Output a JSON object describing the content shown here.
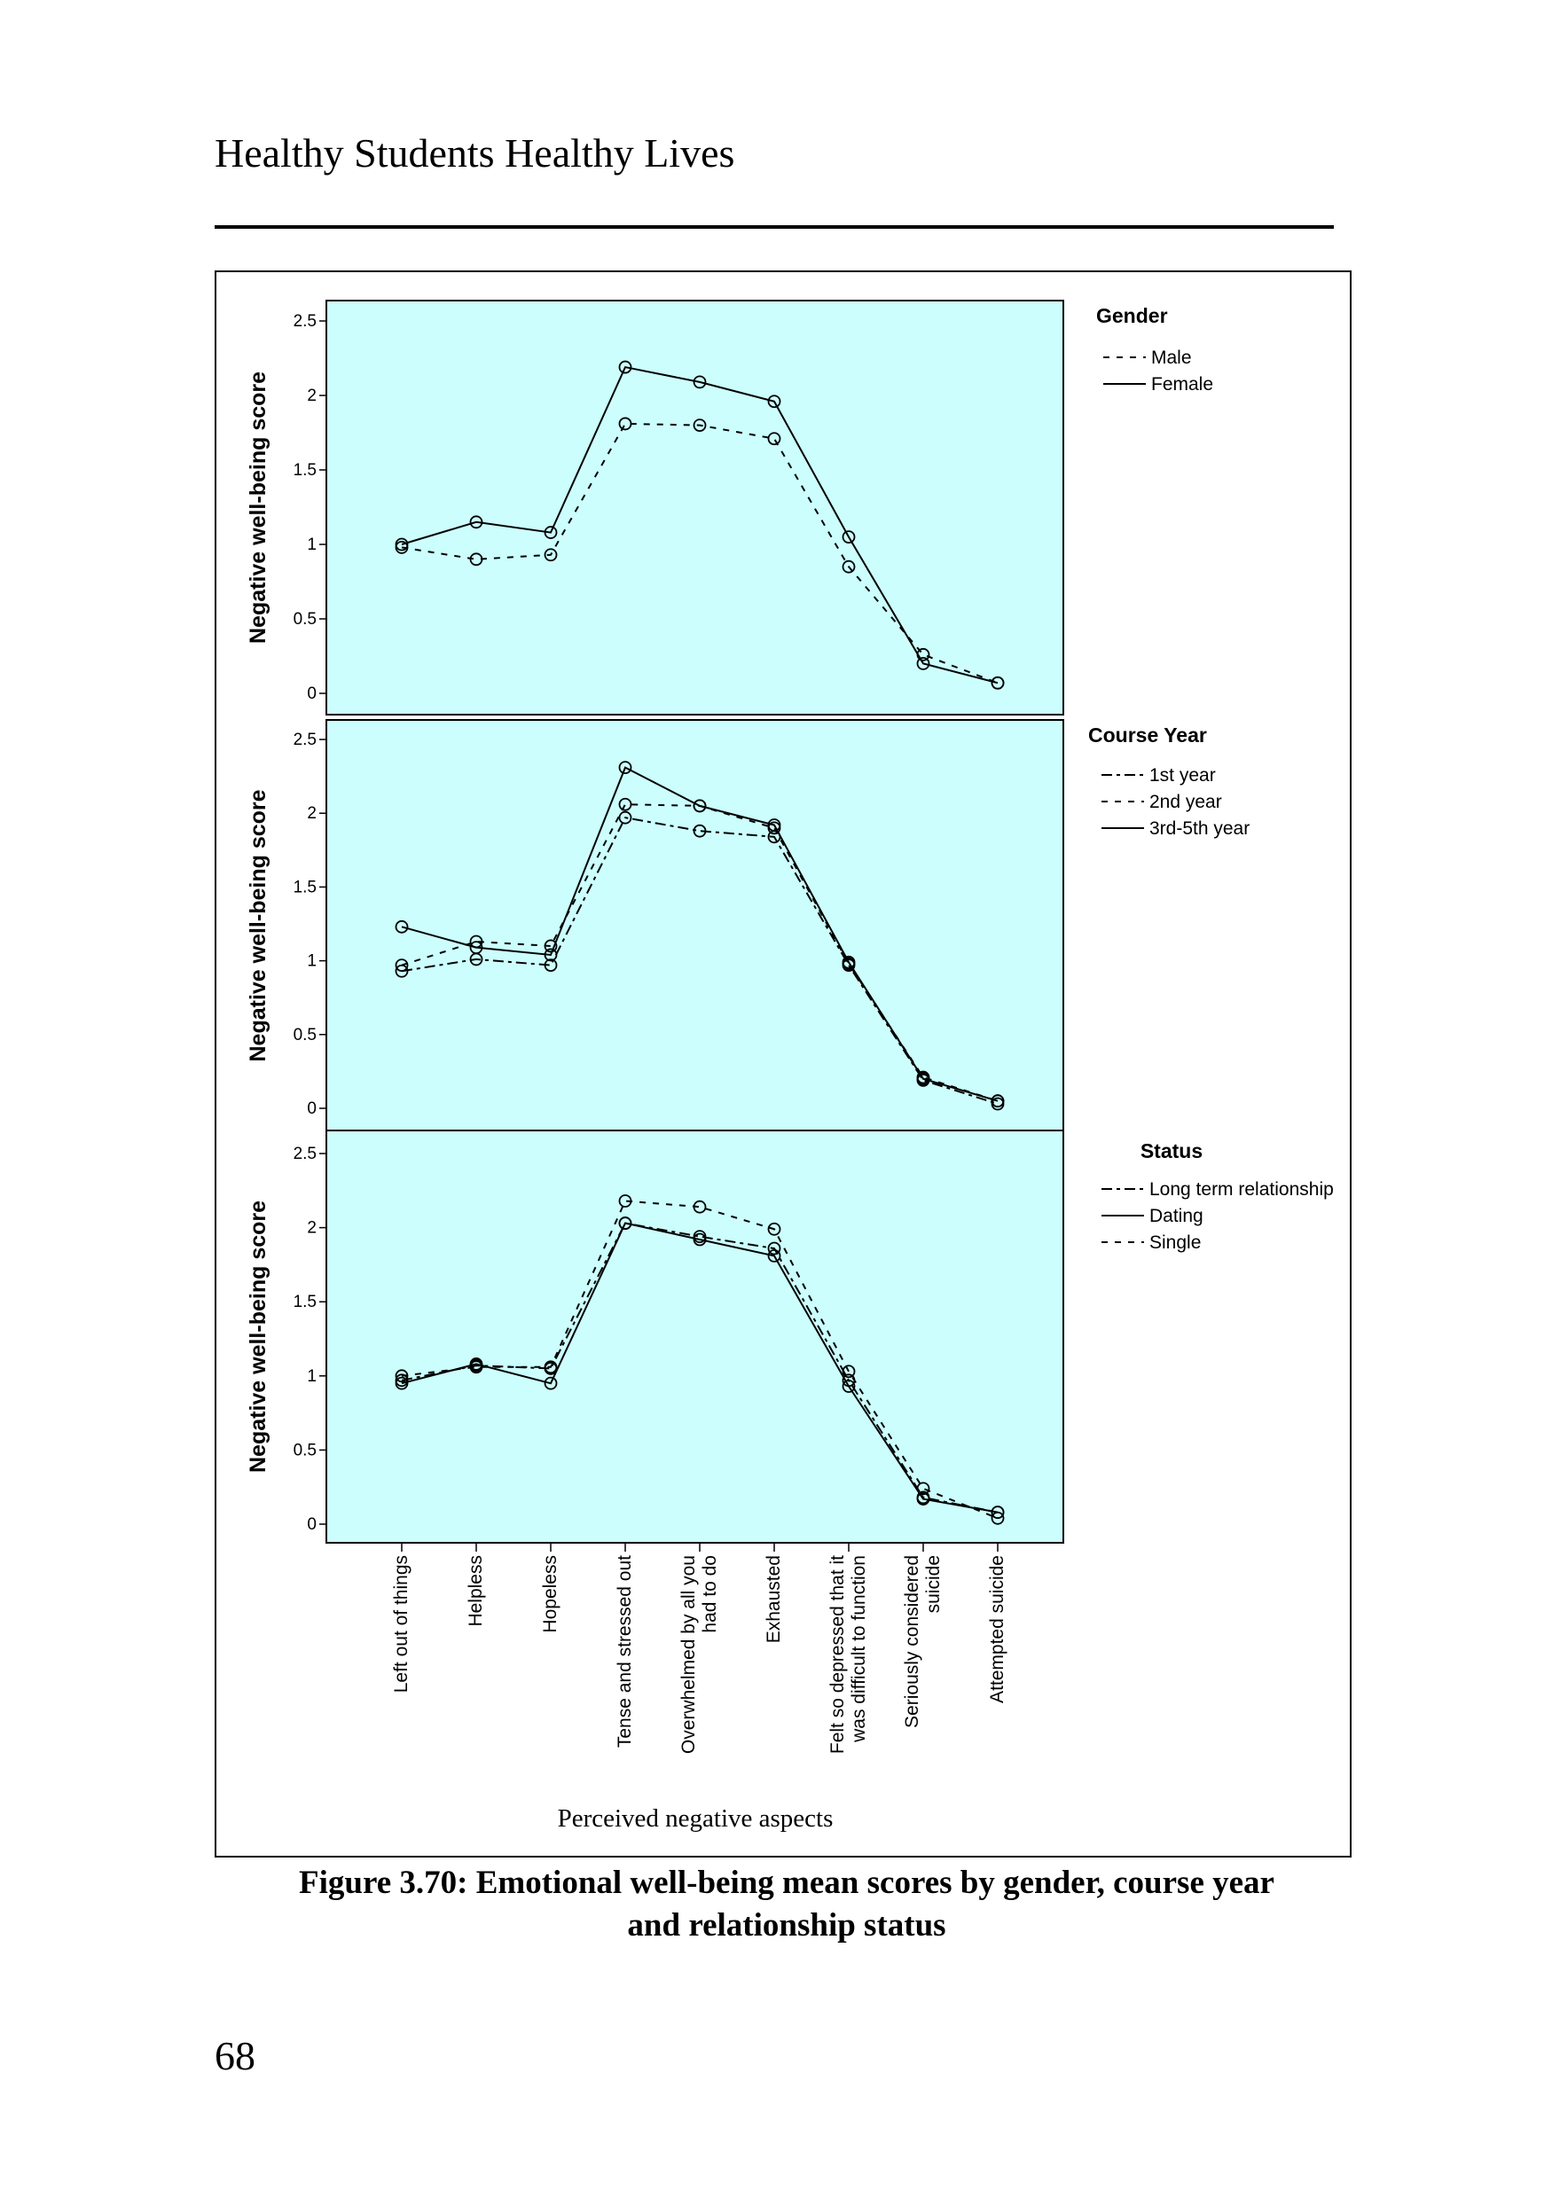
{
  "page": {
    "running_header": "Healthy Students Healthy Lives",
    "page_number": "68"
  },
  "figure": {
    "caption_line1": "Figure 3.70: Emotional well-being mean scores by gender, course year",
    "caption_line2": "and relationship status",
    "panel_background": "#ccfefe"
  },
  "chart_data": [
    {
      "type": "line",
      "legend_title": "Gender",
      "legend_position": "right",
      "ylabel": "Negative well-being score",
      "ylim": [
        0,
        2.5
      ],
      "yticks": [
        "0",
        "0.5",
        "1",
        "1.5",
        "2",
        "2.5"
      ],
      "categories": [
        "Left out of things",
        "Helpless",
        "Hopeless",
        "Tense and stressed out",
        "Overwhelmed by all you had to do",
        "Exhausted",
        "Felt so depressed that it was difficult to function",
        "Seriously considered suicide",
        "Attempted suicide"
      ],
      "series": [
        {
          "name": "Male",
          "style": "dashed",
          "values": [
            0.98,
            0.9,
            0.93,
            1.81,
            1.8,
            1.71,
            0.85,
            0.26,
            0.07
          ]
        },
        {
          "name": "Female",
          "style": "solid",
          "values": [
            1.0,
            1.15,
            1.08,
            2.19,
            2.09,
            1.96,
            1.05,
            0.2,
            0.07
          ]
        }
      ]
    },
    {
      "type": "line",
      "legend_title": "Course Year",
      "legend_position": "right",
      "ylabel": "Negative well-being score",
      "ylim": [
        0,
        2.5
      ],
      "yticks": [
        "0",
        "0.5",
        "1",
        "1.5",
        "2",
        "2.5"
      ],
      "categories": [
        "Left out of things",
        "Helpless",
        "Hopeless",
        "Tense and stressed out",
        "Overwhelmed by all you had to do",
        "Exhausted",
        "Felt so depressed that it was difficult to function",
        "Seriously considered suicide",
        "Attempted suicide"
      ],
      "series": [
        {
          "name": "1st year",
          "style": "dashdot",
          "values": [
            0.93,
            1.01,
            0.97,
            1.97,
            1.88,
            1.84,
            0.97,
            0.19,
            0.03
          ]
        },
        {
          "name": "2nd year",
          "style": "dashed",
          "values": [
            0.97,
            1.13,
            1.1,
            2.06,
            2.05,
            1.9,
            0.98,
            0.21,
            0.05
          ]
        },
        {
          "name": "3rd-5th year",
          "style": "solid",
          "values": [
            1.23,
            1.09,
            1.04,
            2.31,
            2.05,
            1.92,
            0.99,
            0.2,
            0.05
          ]
        }
      ]
    },
    {
      "type": "line",
      "legend_title": "Status",
      "legend_position": "right",
      "xlabel": "Perceived negative aspects",
      "ylabel": "Negative well-being score",
      "ylim": [
        0,
        2.5
      ],
      "yticks": [
        "0",
        "0.5",
        "1",
        "1.5",
        "2",
        "2.5"
      ],
      "categories": [
        "Left out of things",
        "Helpless",
        "Hopeless",
        "Tense and stressed out",
        "Overwhelmed by all you had to do",
        "Exhausted",
        "Felt so depressed that it was difficult to function",
        "Seriously considered suicide",
        "Attempted suicide"
      ],
      "tick_labels": [
        [
          "Left out of things"
        ],
        [
          "Helpless"
        ],
        [
          "Hopeless"
        ],
        [
          "Tense and stressed out"
        ],
        [
          "Overwhelmed by all you",
          "had to do"
        ],
        [
          "Exhausted"
        ],
        [
          "Felt so depressed that it",
          "was difficult to function"
        ],
        [
          "Seriously considered",
          "suicide"
        ],
        [
          "Attempted suicide"
        ]
      ],
      "series": [
        {
          "name": "Long term relationship",
          "style": "dashdot",
          "values": [
            0.97,
            1.07,
            1.05,
            2.03,
            1.94,
            1.86,
            0.97,
            0.18,
            0.08
          ]
        },
        {
          "name": "Dating",
          "style": "solid",
          "values": [
            0.95,
            1.08,
            0.95,
            2.03,
            1.92,
            1.81,
            0.93,
            0.17,
            0.08
          ]
        },
        {
          "name": "Single",
          "style": "dashed",
          "values": [
            1.0,
            1.06,
            1.06,
            2.18,
            2.14,
            1.99,
            1.03,
            0.24,
            0.04
          ]
        }
      ]
    }
  ]
}
